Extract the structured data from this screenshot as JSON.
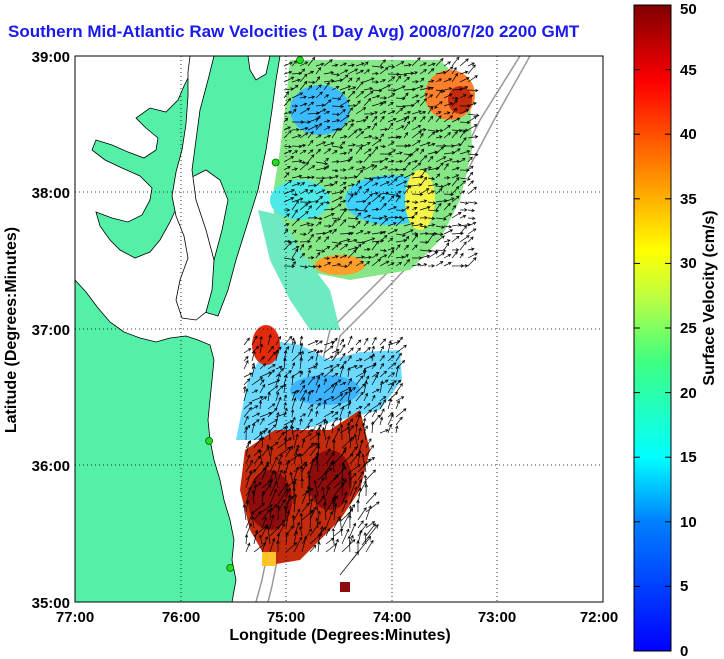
{
  "title": "Southern Mid-Atlantic Raw Velocities (1 Day Avg) 2008/07/20 2200 GMT",
  "x_axis": {
    "label": "Longitude (Degrees:Minutes)",
    "ticks": [
      "77:00",
      "76:00",
      "75:00",
      "74:00",
      "73:00",
      "72:00"
    ]
  },
  "y_axis": {
    "label": "Latitude (Degrees:Minutes)",
    "ticks": [
      "39:00",
      "38:00",
      "37:00",
      "36:00",
      "35:00"
    ]
  },
  "colorbar": {
    "label": "Surface Velocity (cm/s)",
    "ticks": [
      "0",
      "5",
      "10",
      "15",
      "20",
      "25",
      "30",
      "35",
      "40",
      "45",
      "50"
    ],
    "range": [
      0,
      50
    ],
    "colormap": "jet"
  },
  "map": {
    "lon_range": [
      -77,
      -72
    ],
    "lat_range": [
      35,
      39
    ],
    "grid": "dotted",
    "land_color": "#55f0a8",
    "water_color": "#ffffff",
    "stations": [
      {
        "lon": -74.87,
        "lat": 38.97
      },
      {
        "lon": -75.1,
        "lat": 38.22
      },
      {
        "lon": -75.73,
        "lat": 36.18
      },
      {
        "lon": -75.53,
        "lat": 35.25
      }
    ]
  }
}
